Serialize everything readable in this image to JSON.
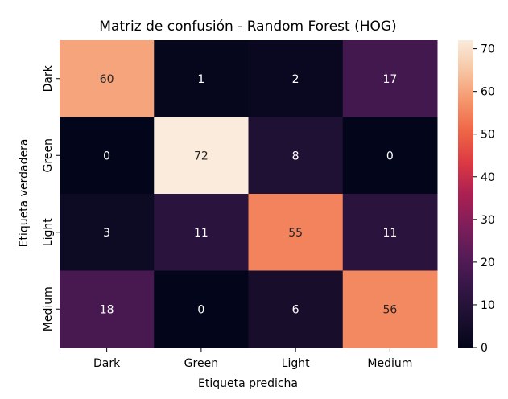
{
  "chart_data": {
    "type": "heatmap",
    "title": "Matriz de confusión - Random Forest (HOG)",
    "xlabel": "Etiqueta predicha",
    "ylabel": "Etiqueta verdadera",
    "x_categories": [
      "Dark",
      "Green",
      "Light",
      "Medium"
    ],
    "y_categories": [
      "Dark",
      "Green",
      "Light",
      "Medium"
    ],
    "values": [
      [
        60,
        1,
        2,
        17
      ],
      [
        0,
        72,
        8,
        0
      ],
      [
        3,
        11,
        55,
        11
      ],
      [
        18,
        0,
        6,
        56
      ]
    ],
    "colorbar": {
      "min": 0,
      "max": 72,
      "ticks": [
        0,
        10,
        20,
        30,
        40,
        50,
        60,
        70
      ],
      "colormap": "rocket"
    }
  }
}
